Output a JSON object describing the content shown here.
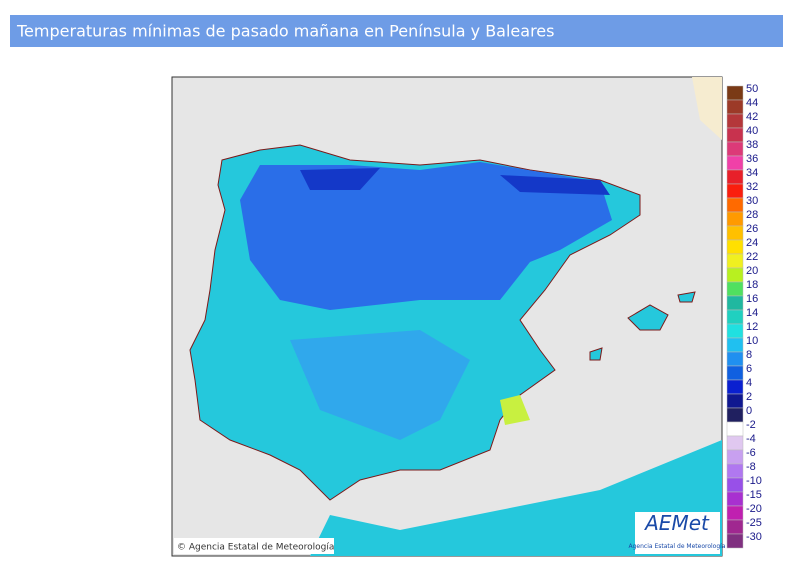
{
  "header": {
    "title": "Temperaturas mínimas de pasado mañana en Península y Baleares"
  },
  "map": {
    "credit": "© Agencia Estatal de Meteorología",
    "logo": "AEMet",
    "logo_subtitle": "Agencia Estatal de Meteorología"
  },
  "legend": {
    "items": [
      {
        "label": "50",
        "color": "#7a3a16"
      },
      {
        "label": "44",
        "color": "#9c3a28"
      },
      {
        "label": "42",
        "color": "#b4373a"
      },
      {
        "label": "40",
        "color": "#c8324e"
      },
      {
        "label": "38",
        "color": "#dc3a78"
      },
      {
        "label": "36",
        "color": "#f040a8"
      },
      {
        "label": "34",
        "color": "#e8202a"
      },
      {
        "label": "32",
        "color": "#fa1e0e"
      },
      {
        "label": "30",
        "color": "#ff6a00"
      },
      {
        "label": "28",
        "color": "#ff9a00"
      },
      {
        "label": "26",
        "color": "#ffc000"
      },
      {
        "label": "24",
        "color": "#ffe000"
      },
      {
        "label": "22",
        "color": "#f0f020"
      },
      {
        "label": "20",
        "color": "#b8f020"
      },
      {
        "label": "18",
        "color": "#50e060"
      },
      {
        "label": "16",
        "color": "#20b8a0"
      },
      {
        "label": "14",
        "color": "#20d0c0"
      },
      {
        "label": "12",
        "color": "#20e0e0"
      },
      {
        "label": "10",
        "color": "#20c0f0"
      },
      {
        "label": "8",
        "color": "#2090f0"
      },
      {
        "label": "6",
        "color": "#1060e0"
      },
      {
        "label": "4",
        "color": "#0a20d0"
      },
      {
        "label": "2",
        "color": "#101890"
      },
      {
        "label": "0",
        "color": "#202060"
      },
      {
        "label": "-2",
        "color": "#ffffff"
      },
      {
        "label": "-4",
        "color": "#e0c8f0"
      },
      {
        "label": "-6",
        "color": "#c8a0f0"
      },
      {
        "label": "-8",
        "color": "#b078f0"
      },
      {
        "label": "-10",
        "color": "#9850e8"
      },
      {
        "label": "-15",
        "color": "#a830d0"
      },
      {
        "label": "-20",
        "color": "#c020b0"
      },
      {
        "label": "-25",
        "color": "#a02890"
      },
      {
        "label": "-30",
        "color": "#803080"
      }
    ]
  }
}
